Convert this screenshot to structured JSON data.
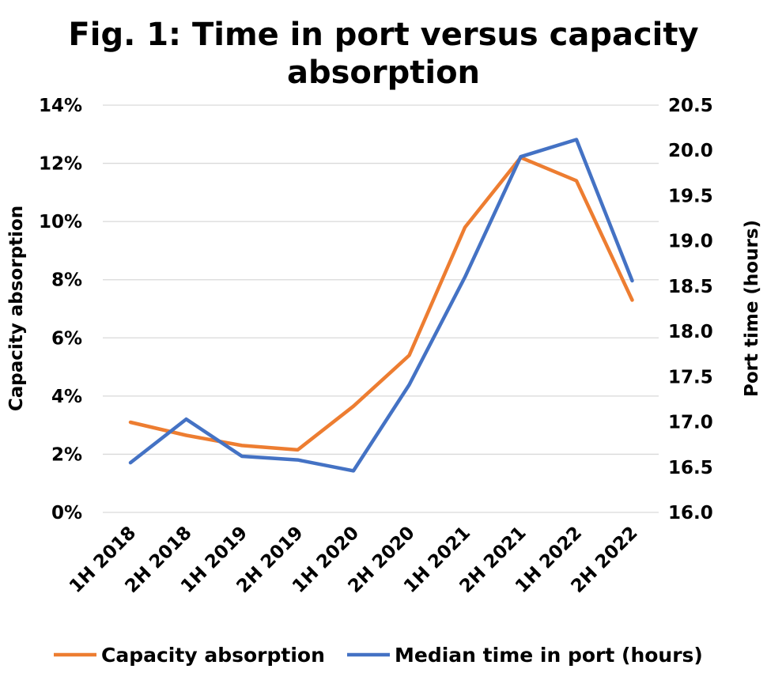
{
  "chart_data": {
    "type": "line",
    "title": "Fig. 1: Time in port versus capacity absorption",
    "categories": [
      "1H 2018",
      "2H 2018",
      "1H 2019",
      "2H 2019",
      "1H 2020",
      "2H 2020",
      "1H 2021",
      "2H 2021",
      "1H 2022",
      "2H 2022"
    ],
    "y_left": {
      "label": "Capacity absorption",
      "min": 0,
      "max": 0.14,
      "step": 0.02,
      "ticks": [
        "0%",
        "2%",
        "4%",
        "6%",
        "8%",
        "10%",
        "12%",
        "14%"
      ]
    },
    "y_right": {
      "label": "Port time (hours)",
      "min": 16.0,
      "max": 20.5,
      "step": 0.5,
      "ticks": [
        "16.0",
        "16.5",
        "17.0",
        "17.5",
        "18.0",
        "18.5",
        "19.0",
        "19.5",
        "20.0",
        "20.5"
      ]
    },
    "series": [
      {
        "name": "Capacity absorption",
        "axis": "left",
        "color": "#ED7D31",
        "values": [
          0.031,
          0.0265,
          0.023,
          0.0215,
          0.0365,
          0.054,
          0.098,
          0.122,
          0.114,
          0.073
        ]
      },
      {
        "name": "Median time in port (hours)",
        "axis": "right",
        "color": "#4472C4",
        "values": [
          16.55,
          17.03,
          16.62,
          16.58,
          16.46,
          17.41,
          18.6,
          19.93,
          20.12,
          18.56
        ]
      }
    ],
    "grid": true,
    "legend_position": "bottom"
  }
}
